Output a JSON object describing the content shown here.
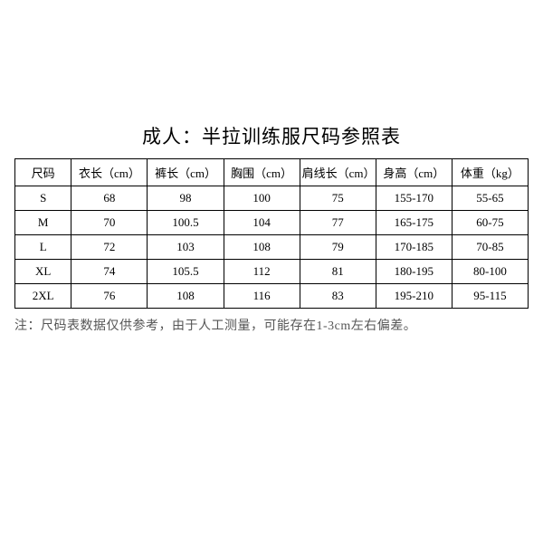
{
  "title": "成人：半拉训练服尺码参照表",
  "table": {
    "columns": [
      "尺码",
      "衣长（cm）",
      "裤长（cm）",
      "胸围（cm）",
      "肩线长（cm）",
      "身高（cm）",
      "体重（kg）"
    ],
    "rows": [
      [
        "S",
        "68",
        "98",
        "100",
        "75",
        "155-170",
        "55-65"
      ],
      [
        "M",
        "70",
        "100.5",
        "104",
        "77",
        "165-175",
        "60-75"
      ],
      [
        "L",
        "72",
        "103",
        "108",
        "79",
        "170-185",
        "70-85"
      ],
      [
        "XL",
        "74",
        "105.5",
        "112",
        "81",
        "180-195",
        "80-100"
      ],
      [
        "2XL",
        "76",
        "108",
        "116",
        "83",
        "195-210",
        "95-115"
      ]
    ],
    "header_fontsize": 13,
    "cell_fontsize": 13,
    "border_color": "#000000",
    "background_color": "#ffffff"
  },
  "note": "注：尺码表数据仅供参考，由于人工测量，可能存在1-3cm左右偏差。",
  "title_fontsize": 21,
  "note_fontsize": 14,
  "note_color": "#555555"
}
